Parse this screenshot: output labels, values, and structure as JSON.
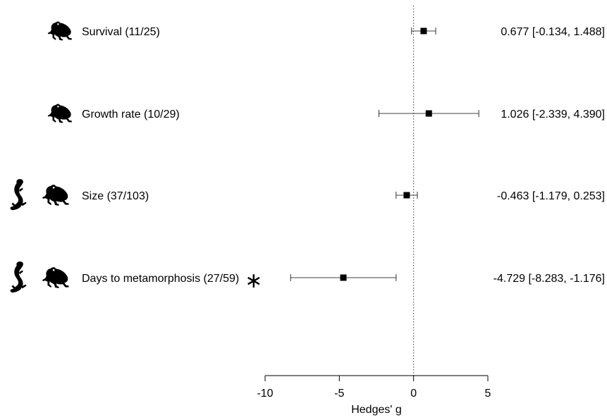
{
  "chart_data": {
    "type": "forest",
    "xlabel": "Hedges' g",
    "xlim": [
      -10,
      5
    ],
    "xticks": [
      -10,
      -5,
      0,
      5
    ],
    "reference_line": 0,
    "rows": [
      {
        "label": "Survival (11/25)",
        "estimate": 0.677,
        "ci": [
          -0.134,
          1.488
        ],
        "ci_text": "0.677 [-0.134,  1.488]",
        "icons": [
          "frog-icon"
        ],
        "significance": ""
      },
      {
        "label": "Growth rate (10/29)",
        "estimate": 1.026,
        "ci": [
          -2.339,
          4.39
        ],
        "ci_text": "1.026 [-2.339,  4.390]",
        "icons": [
          "frog-icon"
        ],
        "significance": ""
      },
      {
        "label": "Size (37/103)",
        "estimate": -0.463,
        "ci": [
          -1.179,
          0.253
        ],
        "ci_text": "-0.463 [-1.179,  0.253]",
        "icons": [
          "salamander-icon",
          "frog-icon"
        ],
        "significance": ""
      },
      {
        "label": "Days to metamorphosis (27/59)",
        "estimate": -4.729,
        "ci": [
          -8.283,
          -1.176
        ],
        "ci_text": "-4.729 [-8.283, -1.176]",
        "icons": [
          "salamander-icon",
          "frog-icon"
        ],
        "significance": "∗"
      }
    ]
  }
}
